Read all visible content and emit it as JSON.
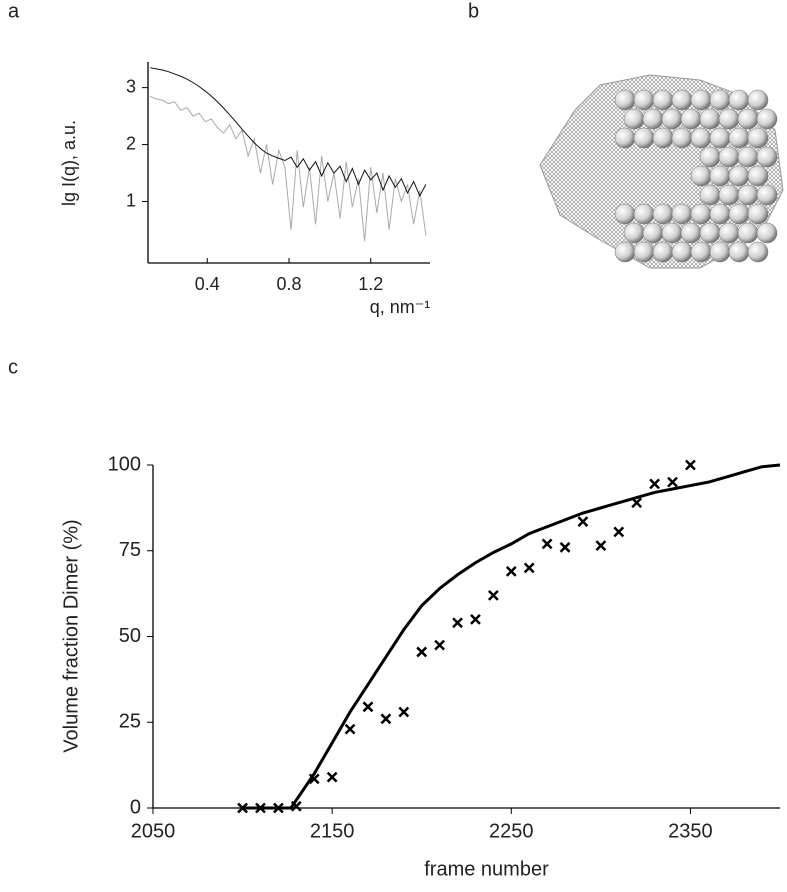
{
  "panel_labels": [
    "a",
    "b",
    "c"
  ],
  "chart_data": [
    {
      "type": "line",
      "xlabel": "q, nm⁻¹",
      "ylabel": "lg I(q), a.u.",
      "xlim": [
        0.11,
        1.49
      ],
      "ylim": [
        -0.08,
        3.45
      ],
      "xticks": [
        0.4,
        0.8,
        1.2
      ],
      "yticks": [
        1,
        2,
        3
      ],
      "x": [
        0.12,
        0.15,
        0.18,
        0.21,
        0.24,
        0.27,
        0.3,
        0.33,
        0.36,
        0.39,
        0.42,
        0.45,
        0.48,
        0.51,
        0.54,
        0.57,
        0.6,
        0.63,
        0.66,
        0.69,
        0.72,
        0.75,
        0.78,
        0.81,
        0.84,
        0.87,
        0.9,
        0.93,
        0.96,
        0.99,
        1.02,
        1.05,
        1.08,
        1.11,
        1.14,
        1.17,
        1.2,
        1.23,
        1.26,
        1.29,
        1.32,
        1.35,
        1.38,
        1.41,
        1.44,
        1.47
      ],
      "series": [
        {
          "color": "#aaaaaa",
          "values": [
            2.85,
            2.8,
            2.78,
            2.72,
            2.75,
            2.6,
            2.65,
            2.5,
            2.55,
            2.4,
            2.45,
            2.3,
            2.2,
            2.35,
            2.1,
            2.25,
            1.8,
            2.1,
            1.5,
            2.0,
            1.3,
            1.9,
            1.6,
            0.5,
            1.9,
            0.9,
            1.6,
            0.6,
            1.8,
            1.0,
            1.5,
            0.7,
            1.7,
            0.9,
            1.4,
            0.3,
            1.6,
            0.8,
            1.5,
            0.5,
            1.4,
            1.0,
            1.3,
            0.6,
            1.2,
            0.4
          ]
        },
        {
          "color": "#111111",
          "values": [
            3.35,
            3.33,
            3.31,
            3.28,
            3.24,
            3.2,
            3.15,
            3.09,
            3.02,
            2.94,
            2.85,
            2.75,
            2.64,
            2.52,
            2.4,
            2.27,
            2.15,
            2.03,
            1.93,
            1.85,
            1.8,
            1.76,
            1.72,
            1.78,
            1.6,
            1.75,
            1.55,
            1.7,
            1.45,
            1.68,
            1.5,
            1.62,
            1.35,
            1.58,
            1.3,
            1.55,
            1.38,
            1.5,
            1.2,
            1.45,
            1.25,
            1.4,
            1.15,
            1.35,
            1.1,
            1.3
          ]
        }
      ]
    },
    {
      "type": "scatter",
      "xlabel": "frame number",
      "ylabel": "Volume fraction Dimer (%)",
      "xlim": [
        2050,
        2400
      ],
      "ylim": [
        0,
        100
      ],
      "xticks": [
        2050,
        2150,
        2250,
        2350
      ],
      "yticks": [
        0,
        25,
        50,
        75,
        100
      ],
      "series": [
        {
          "style": "line",
          "color": "#000000",
          "x": [
            2100,
            2110,
            2120,
            2127,
            2140,
            2150,
            2160,
            2170,
            2180,
            2190,
            2200,
            2210,
            2220,
            2230,
            2240,
            2250,
            2260,
            2270,
            2280,
            2290,
            2300,
            2310,
            2320,
            2330,
            2340,
            2350,
            2360,
            2370,
            2380,
            2390,
            2400
          ],
          "values": [
            0,
            0,
            0,
            0,
            10,
            19,
            28,
            36,
            44,
            52,
            59,
            64,
            68,
            71.5,
            74.5,
            77,
            80,
            82,
            84,
            86,
            87.5,
            89,
            90.5,
            92,
            93,
            94,
            95,
            96.5,
            98,
            99.5,
            100
          ]
        },
        {
          "style": "markers",
          "color": "#000000",
          "x": [
            2100,
            2110,
            2120,
            2130,
            2140,
            2150,
            2160,
            2170,
            2180,
            2190,
            2200,
            2210,
            2220,
            2230,
            2240,
            2250,
            2260,
            2270,
            2280,
            2290,
            2300,
            2310,
            2320,
            2330,
            2340,
            2350
          ],
          "values": [
            0,
            0,
            0,
            0.5,
            8.5,
            9,
            23,
            29.5,
            26,
            28,
            45.5,
            47.5,
            54,
            55,
            62,
            69,
            70,
            77,
            76,
            83.5,
            76.5,
            80.5,
            89,
            94.5,
            95,
            100
          ]
        }
      ]
    }
  ]
}
